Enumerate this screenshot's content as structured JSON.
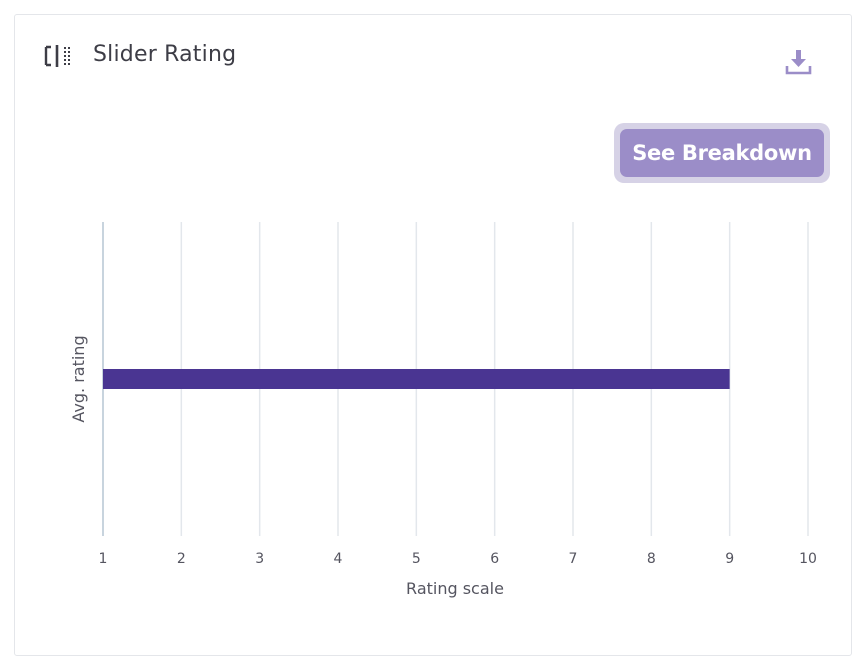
{
  "card": {
    "title": "Slider Rating",
    "title_icon": "slider-icon",
    "download_icon": "download-icon",
    "breakdown_button_label": "See Breakdown"
  },
  "colors": {
    "bar": "#4a3592",
    "button": "#9b8dc8",
    "button_halo": "#d6d2e6",
    "icon": "#9b8dc8",
    "grid": "#e3e7ec",
    "axis": "#c8d4de"
  },
  "chart_data": {
    "type": "bar",
    "orientation": "horizontal",
    "categories": [
      "Avg. rating"
    ],
    "values": [
      9
    ],
    "xlim": [
      1,
      10
    ],
    "xticks": [
      "1",
      "2",
      "3",
      "4",
      "5",
      "6",
      "7",
      "8",
      "9",
      "10"
    ],
    "xlabel": "Rating scale",
    "ylabel": "Avg. rating",
    "grid": true
  }
}
